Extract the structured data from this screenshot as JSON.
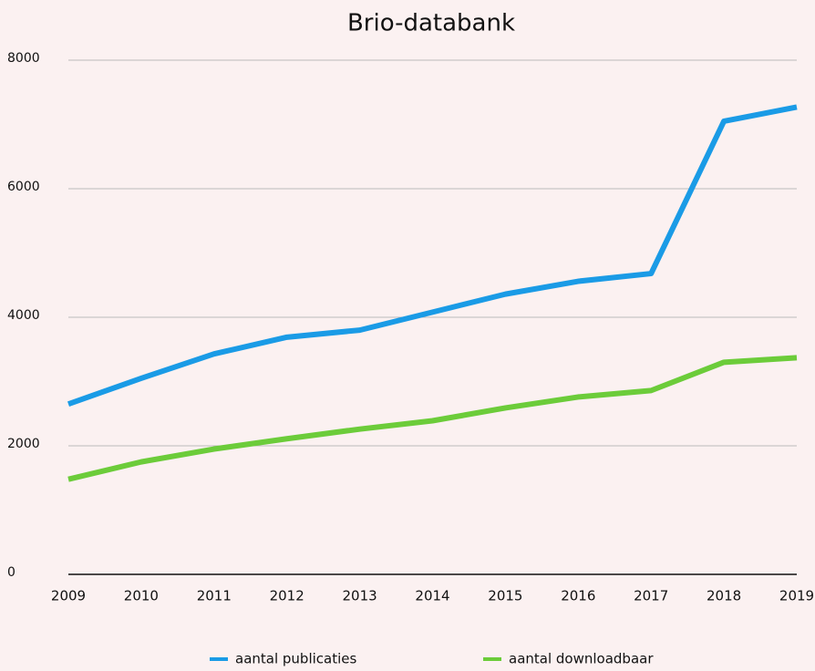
{
  "chart_data": {
    "type": "line",
    "title": "Brio-databank",
    "categories": [
      "2009",
      "2010",
      "2011",
      "2012",
      "2013",
      "2014",
      "2015",
      "2016",
      "2017",
      "2018",
      "2019"
    ],
    "series": [
      {
        "name": "aantal publicaties",
        "color": "#1a9be6",
        "values": [
          2650,
          3050,
          3430,
          3690,
          3800,
          4080,
          4360,
          4560,
          4680,
          7050,
          7270
        ]
      },
      {
        "name": "aantal downloadbaar",
        "color": "#6ccc3a",
        "values": [
          1480,
          1750,
          1950,
          2110,
          2260,
          2390,
          2590,
          2760,
          2860,
          3300,
          3370
        ]
      }
    ],
    "ylim": [
      0,
      8000
    ],
    "yticks": [
      0,
      2000,
      4000,
      6000,
      8000
    ],
    "grid": true,
    "legend": "bottom"
  }
}
